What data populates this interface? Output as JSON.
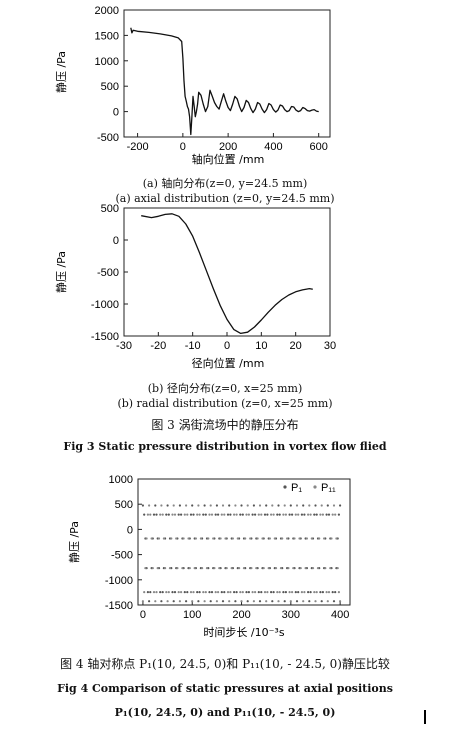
{
  "chart_data": [
    {
      "type": "line",
      "xlabel": "轴向位置 /mm",
      "ylabel": "静压 /Pa",
      "xlim": [
        -260,
        650
      ],
      "ylim": [
        -500,
        2000
      ],
      "xticks": [
        "-200",
        "0",
        "200",
        "400",
        "600"
      ],
      "xtick_values": [
        -200,
        0,
        200,
        400,
        600
      ],
      "yticks": [
        "2000",
        "1500",
        "1000",
        "500",
        "0",
        "-500"
      ],
      "ytick_values": [
        2000,
        1500,
        1000,
        500,
        0,
        -500
      ],
      "caption_cn": "(a) 轴向分布(z=0, y=24.5 mm)",
      "caption_en": "(a) axial distribution (z=0, y=24.5 mm)",
      "series": [
        {
          "x": [
            -230,
            -225,
            -220,
            -200,
            -150,
            -100,
            -50,
            -20,
            -5,
            0,
            5,
            10,
            15,
            20,
            25,
            30,
            35,
            40,
            45,
            50,
            55,
            60,
            65,
            70,
            80,
            90,
            100,
            110,
            120,
            130,
            140,
            150,
            160,
            170,
            180,
            190,
            200,
            210,
            220,
            230,
            240,
            250,
            260,
            270,
            280,
            290,
            300,
            310,
            320,
            330,
            340,
            350,
            360,
            370,
            380,
            390,
            400,
            410,
            420,
            430,
            440,
            450,
            460,
            470,
            480,
            490,
            500,
            510,
            520,
            530,
            540,
            550,
            560,
            570,
            580,
            590,
            600
          ],
          "y": [
            1650,
            1550,
            1600,
            1580,
            1560,
            1530,
            1490,
            1450,
            1380,
            1050,
            600,
            300,
            200,
            100,
            50,
            -100,
            -450,
            -100,
            300,
            100,
            -100,
            0,
            150,
            380,
            320,
            150,
            0,
            100,
            420,
            300,
            180,
            100,
            50,
            200,
            350,
            200,
            80,
            20,
            150,
            300,
            250,
            100,
            0,
            80,
            220,
            180,
            60,
            -20,
            50,
            180,
            150,
            50,
            -20,
            40,
            160,
            130,
            40,
            -10,
            30,
            130,
            110,
            40,
            0,
            20,
            100,
            90,
            30,
            0,
            20,
            80,
            60,
            20,
            10,
            30,
            40,
            10,
            0
          ]
        }
      ]
    },
    {
      "type": "line",
      "xlabel": "径向位置 /mm",
      "ylabel": "静压 /Pa",
      "xlim": [
        -30,
        30
      ],
      "ylim": [
        -1500,
        500
      ],
      "xticks": [
        "-30",
        "-20",
        "-10",
        "0",
        "10",
        "20",
        "30"
      ],
      "xtick_values": [
        -30,
        -20,
        -10,
        0,
        10,
        20,
        30
      ],
      "yticks": [
        "500",
        "0",
        "-500",
        "-1000",
        "-1500"
      ],
      "ytick_values": [
        500,
        0,
        -500,
        -1000,
        -1500
      ],
      "caption_cn": "(b) 径向分布(z=0, x=25 mm)",
      "caption_en": "(b) radial distribution (z=0, x=25 mm)",
      "series": [
        {
          "x": [
            -25,
            -22,
            -20,
            -18,
            -16,
            -14,
            -12,
            -10,
            -8,
            -6,
            -4,
            -2,
            0,
            2,
            4,
            6,
            8,
            10,
            12,
            14,
            16,
            18,
            20,
            22,
            24,
            25
          ],
          "y": [
            380,
            350,
            370,
            400,
            410,
            370,
            250,
            60,
            -200,
            -480,
            -760,
            -1020,
            -1240,
            -1400,
            -1460,
            -1440,
            -1360,
            -1250,
            -1130,
            -1020,
            -930,
            -860,
            -810,
            -780,
            -760,
            -770
          ]
        }
      ]
    },
    {
      "type": "scatter",
      "xlabel": "时间步长 /10⁻³s",
      "ylabel": "静压 /Pa",
      "xlim": [
        -10,
        420
      ],
      "ylim": [
        -1500,
        1000
      ],
      "xticks": [
        "0",
        "100",
        "200",
        "300",
        "400"
      ],
      "xtick_values": [
        0,
        100,
        200,
        300,
        400
      ],
      "yticks": [
        "1000",
        "500",
        "0",
        "-500",
        "-1000",
        "-1500"
      ],
      "ytick_values": [
        1000,
        500,
        0,
        -500,
        -1000,
        -1500
      ],
      "legend_position": "top-right",
      "series": [
        {
          "name": "P1",
          "amplitude": 950,
          "offset": -475,
          "period": 25,
          "phase": 0,
          "x_start": 0,
          "x_end": 400,
          "step": 2.5
        },
        {
          "name": "P11",
          "amplitude": 950,
          "offset": -475,
          "period": 25,
          "phase": 12.5,
          "x_start": 0,
          "x_end": 400,
          "step": 2.5
        }
      ]
    }
  ],
  "fig3": {
    "title_cn": "图 3   涡街流场中的静压分布",
    "title_en": "Fig 3   Static pressure distribution in vortex flow flied"
  },
  "fig4": {
    "title_cn": "图 4   轴对称点 P₁(10, 24.5, 0)和 P₁₁(10, - 24.5, 0)静压比较",
    "title_en_1": "Fig 4   Comparison of static pressures at axial positions",
    "title_en_2": "P₁(10, 24.5, 0)  and  P₁₁(10,  - 24.5, 0)"
  },
  "legend": {
    "p1_label": "P₁",
    "p11_label": "P₁₁"
  }
}
